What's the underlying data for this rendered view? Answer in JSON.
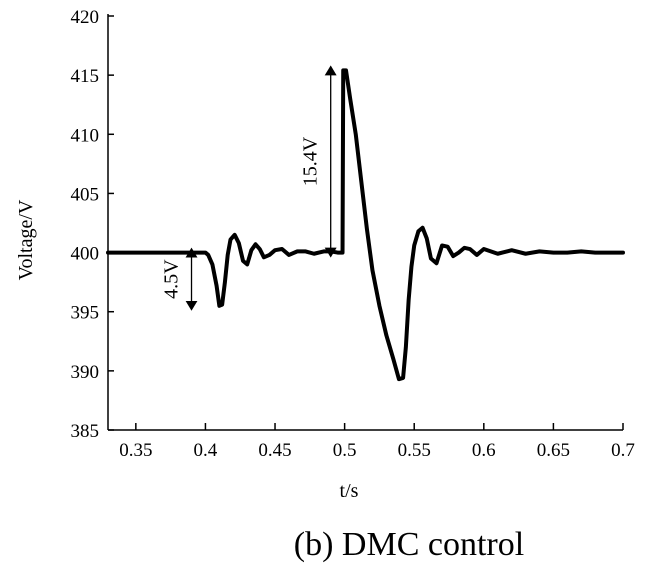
{
  "chart_data": {
    "type": "line",
    "xlabel": "t/s",
    "ylabel": "Voltage/V",
    "xlim": [
      0.33,
      0.7
    ],
    "ylim": [
      385,
      420
    ],
    "xticks": [
      "0.35",
      "0.4",
      "0.45",
      "0.5",
      "0.55",
      "0.6",
      "0.65",
      "0.7"
    ],
    "yticks": [
      "385",
      "390",
      "395",
      "400",
      "405",
      "410",
      "415",
      "420"
    ],
    "grid": false,
    "series": [
      {
        "name": "",
        "x": [
          0.33,
          0.35,
          0.37,
          0.385,
          0.4,
          0.402,
          0.405,
          0.408,
          0.41,
          0.412,
          0.414,
          0.416,
          0.418,
          0.421,
          0.424,
          0.427,
          0.43,
          0.433,
          0.436,
          0.439,
          0.442,
          0.446,
          0.45,
          0.455,
          0.46,
          0.466,
          0.472,
          0.478,
          0.485,
          0.49,
          0.495,
          0.498,
          0.4985,
          0.499,
          0.501,
          0.504,
          0.508,
          0.512,
          0.516,
          0.52,
          0.525,
          0.53,
          0.535,
          0.539,
          0.542,
          0.544,
          0.546,
          0.548,
          0.55,
          0.553,
          0.556,
          0.559,
          0.562,
          0.566,
          0.57,
          0.574,
          0.578,
          0.582,
          0.586,
          0.59,
          0.595,
          0.6,
          0.605,
          0.61,
          0.62,
          0.63,
          0.64,
          0.65,
          0.66,
          0.67,
          0.68,
          0.69,
          0.7
        ],
        "y": [
          400,
          400,
          400,
          400,
          400,
          399.8,
          399,
          397.2,
          395.5,
          395.6,
          397.5,
          399.8,
          401.1,
          401.5,
          400.8,
          399.3,
          399,
          400.2,
          400.7,
          400.3,
          399.6,
          399.8,
          400.2,
          400.3,
          399.8,
          400.1,
          400.1,
          399.9,
          400.1,
          400.1,
          400,
          400,
          400,
          415.4,
          415.4,
          413,
          410,
          406,
          402,
          398.5,
          395.5,
          393,
          391,
          389.3,
          389.4,
          392,
          396,
          398.8,
          400.6,
          401.8,
          402.1,
          401.2,
          399.5,
          399.1,
          400.6,
          400.5,
          399.7,
          400,
          400.4,
          400.3,
          399.8,
          400.3,
          400.1,
          399.9,
          400.2,
          399.9,
          400.1,
          400,
          400,
          400.1,
          400,
          400,
          400
        ]
      }
    ],
    "annotations": [
      {
        "text": "4.5V",
        "x": 0.39,
        "y_from": 395.5,
        "y_to": 400
      },
      {
        "text": "15.4V",
        "x": 0.49,
        "y_from": 400,
        "y_to": 415.4
      }
    ],
    "caption": "(b) DMC control"
  }
}
